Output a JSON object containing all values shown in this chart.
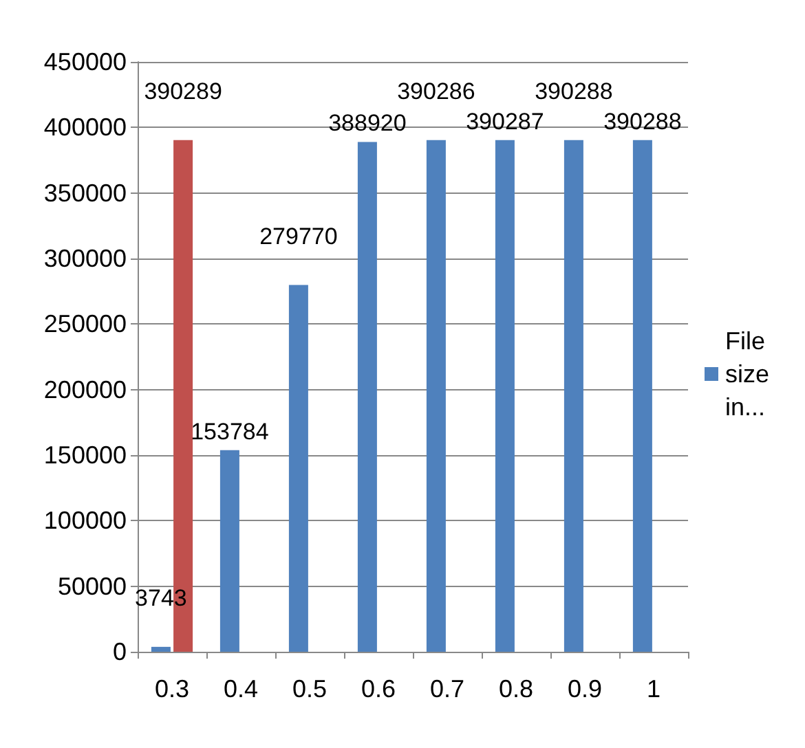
{
  "chart_data": {
    "type": "bar",
    "categories": [
      "0.3",
      "0.4",
      "0.5",
      "0.6",
      "0.7",
      "0.8",
      "0.9",
      "1"
    ],
    "series": [
      {
        "name": "File size in...",
        "color": "#4f81bd",
        "values": [
          3743,
          153784,
          279770,
          388920,
          390286,
          390287,
          390288,
          390288
        ]
      },
      {
        "color": "#c0504d",
        "values": [
          390289,
          null,
          null,
          null,
          null,
          null,
          null,
          null
        ]
      }
    ],
    "ylim": [
      0,
      450000
    ],
    "yticks": [
      0,
      50000,
      100000,
      150000,
      200000,
      250000,
      300000,
      350000,
      400000,
      450000
    ],
    "grid": "y",
    "legend": "right",
    "data_labels": true
  }
}
